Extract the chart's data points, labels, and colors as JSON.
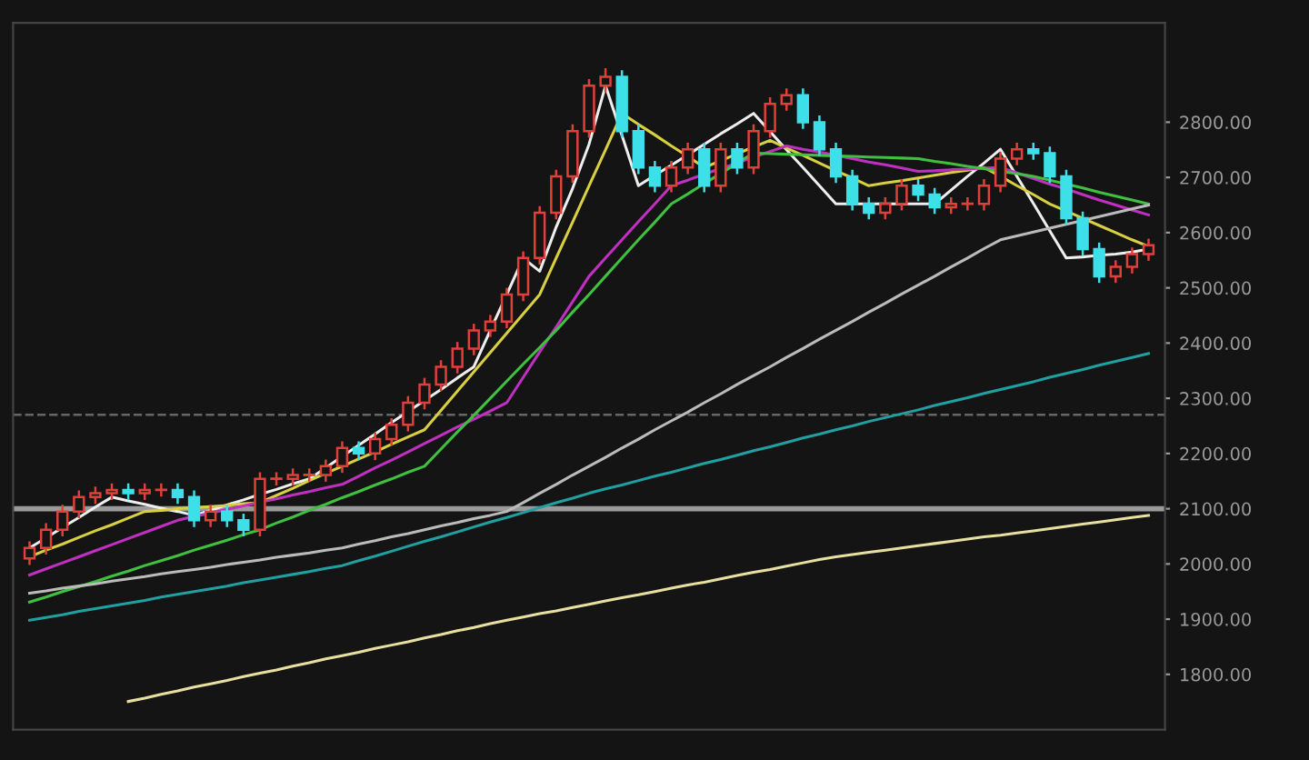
{
  "chart_data": {
    "type": "candlestick",
    "categories": [
      null,
      null,
      null,
      null,
      null,
      null,
      null,
      null,
      null,
      null,
      null,
      null,
      null,
      null,
      null,
      null,
      null,
      null,
      null,
      null,
      null,
      null,
      null,
      null,
      null,
      null,
      null,
      null,
      null,
      null,
      null,
      null,
      null,
      null,
      null,
      null,
      null,
      null,
      null,
      null,
      null,
      null,
      null,
      null,
      null,
      null,
      null,
      null,
      null,
      null,
      null,
      null,
      null,
      null,
      null,
      null,
      null,
      null,
      null,
      null,
      null,
      null,
      null,
      null,
      null,
      null,
      null,
      null,
      null
    ],
    "ohlc": [
      [
        2010,
        2041,
        1998,
        2029
      ],
      [
        2029,
        2074,
        2017,
        2062
      ],
      [
        2062,
        2107,
        2050,
        2095
      ],
      [
        2095,
        2133,
        2083,
        2121
      ],
      [
        2121,
        2140,
        2109,
        2128
      ],
      [
        2128,
        2146,
        2116,
        2134
      ],
      [
        2134,
        2146,
        2116,
        2128
      ],
      [
        2128,
        2146,
        2116,
        2134
      ],
      [
        2134,
        2146,
        2122,
        2134
      ],
      [
        2134,
        2146,
        2109,
        2121
      ],
      [
        2121,
        2133,
        2067,
        2079
      ],
      [
        2079,
        2107,
        2067,
        2095
      ],
      [
        2095,
        2107,
        2067,
        2079
      ],
      [
        2079,
        2091,
        2050,
        2062
      ],
      [
        2062,
        2166,
        2050,
        2154
      ],
      [
        2154,
        2166,
        2142,
        2154
      ],
      [
        2154,
        2173,
        2142,
        2161
      ],
      [
        2161,
        2173,
        2149,
        2161
      ],
      [
        2161,
        2189,
        2149,
        2177
      ],
      [
        2177,
        2222,
        2165,
        2210
      ],
      [
        2210,
        2222,
        2188,
        2200
      ],
      [
        2200,
        2238,
        2188,
        2226
      ],
      [
        2226,
        2264,
        2214,
        2252
      ],
      [
        2252,
        2304,
        2240,
        2292
      ],
      [
        2292,
        2337,
        2280,
        2325
      ],
      [
        2325,
        2369,
        2313,
        2357
      ],
      [
        2357,
        2402,
        2345,
        2390
      ],
      [
        2390,
        2435,
        2378,
        2423
      ],
      [
        2423,
        2451,
        2411,
        2439
      ],
      [
        2439,
        2500,
        2427,
        2488
      ],
      [
        2488,
        2566,
        2476,
        2554
      ],
      [
        2554,
        2648,
        2542,
        2636
      ],
      [
        2636,
        2714,
        2624,
        2702
      ],
      [
        2702,
        2796,
        2690,
        2784
      ],
      [
        2784,
        2878,
        2772,
        2866
      ],
      [
        2866,
        2898,
        2854,
        2882
      ],
      [
        2882,
        2894,
        2772,
        2784
      ],
      [
        2784,
        2796,
        2706,
        2718
      ],
      [
        2718,
        2730,
        2673,
        2685
      ],
      [
        2685,
        2730,
        2673,
        2718
      ],
      [
        2718,
        2763,
        2706,
        2751
      ],
      [
        2751,
        2763,
        2673,
        2685
      ],
      [
        2685,
        2763,
        2673,
        2751
      ],
      [
        2751,
        2763,
        2706,
        2718
      ],
      [
        2718,
        2796,
        2706,
        2784
      ],
      [
        2784,
        2845,
        2772,
        2833
      ],
      [
        2833,
        2861,
        2821,
        2849
      ],
      [
        2849,
        2861,
        2788,
        2800
      ],
      [
        2800,
        2812,
        2739,
        2751
      ],
      [
        2751,
        2763,
        2690,
        2702
      ],
      [
        2702,
        2714,
        2640,
        2652
      ],
      [
        2652,
        2664,
        2624,
        2636
      ],
      [
        2636,
        2664,
        2624,
        2652
      ],
      [
        2652,
        2697,
        2640,
        2685
      ],
      [
        2685,
        2697,
        2657,
        2669
      ],
      [
        2669,
        2681,
        2634,
        2646
      ],
      [
        2646,
        2664,
        2634,
        2652
      ],
      [
        2652,
        2664,
        2640,
        2652
      ],
      [
        2652,
        2697,
        2640,
        2685
      ],
      [
        2685,
        2746,
        2673,
        2734
      ],
      [
        2734,
        2763,
        2722,
        2751
      ],
      [
        2751,
        2763,
        2732,
        2744
      ],
      [
        2744,
        2756,
        2690,
        2702
      ],
      [
        2702,
        2714,
        2614,
        2626
      ],
      [
        2626,
        2638,
        2558,
        2570
      ],
      [
        2570,
        2582,
        2509,
        2521
      ],
      [
        2521,
        2550,
        2509,
        2538
      ],
      [
        2538,
        2573,
        2526,
        2561
      ],
      [
        2561,
        2589,
        2549,
        2577
      ]
    ],
    "series": [
      {
        "type": "line",
        "color": "#eeeeee",
        "values": [
          2029,
          2047,
          2066,
          2084,
          2103,
          2121,
          2114,
          2108,
          2101,
          2095,
          2088,
          2097,
          2107,
          2116,
          2126,
          2135,
          2145,
          2154,
          2174,
          2195,
          2215,
          2235,
          2256,
          2276,
          2296,
          2316,
          2337,
          2357,
          2423,
          2488,
          2554,
          2530,
          2610,
          2680,
          2760,
          2866,
          2776,
          2685,
          2704,
          2722,
          2741,
          2760,
          2779,
          2797,
          2816,
          2783,
          2750,
          2718,
          2685,
          2652,
          2652,
          2652,
          2652,
          2652,
          2652,
          2652,
          2677,
          2702,
          2726,
          2751,
          2702,
          2653,
          2603,
          2554,
          2556,
          2559,
          2561,
          2565,
          2570
        ]
      },
      {
        "type": "line",
        "color": "#d8d040",
        "values": [
          2013,
          2025,
          2036,
          2048,
          2060,
          2071,
          2083,
          2095,
          2097,
          2100,
          2102,
          2104,
          2106,
          2109,
          2111,
          2124,
          2137,
          2151,
          2164,
          2177,
          2190,
          2203,
          2217,
          2230,
          2243,
          2278,
          2313,
          2348,
          2383,
          2418,
          2453,
          2488,
          2554,
          2619,
          2685,
          2750,
          2816,
          2796,
          2777,
          2757,
          2738,
          2718,
          2730,
          2743,
          2755,
          2767,
          2753,
          2740,
          2726,
          2712,
          2699,
          2685,
          2690,
          2694,
          2699,
          2704,
          2709,
          2713,
          2718,
          2702,
          2685,
          2669,
          2652,
          2639,
          2626,
          2613,
          2600,
          2587,
          2575
        ]
      },
      {
        "type": "line",
        "color": "#c030c0",
        "values": [
          1980,
          1991,
          2002,
          2013,
          2024,
          2035,
          2046,
          2057,
          2068,
          2079,
          2086,
          2092,
          2099,
          2105,
          2112,
          2118,
          2125,
          2131,
          2138,
          2144,
          2159,
          2174,
          2188,
          2203,
          2218,
          2233,
          2248,
          2262,
          2277,
          2292,
          2338,
          2384,
          2429,
          2475,
          2521,
          2554,
          2587,
          2620,
          2652,
          2685,
          2695,
          2706,
          2716,
          2726,
          2737,
          2747,
          2757,
          2751,
          2746,
          2740,
          2734,
          2728,
          2723,
          2717,
          2711,
          2712,
          2714,
          2715,
          2717,
          2718,
          2708,
          2698,
          2688,
          2679,
          2669,
          2659,
          2650,
          2641,
          2632
        ]
      },
      {
        "type": "line",
        "color": "#40c040",
        "values": [
          1931,
          1940,
          1950,
          1959,
          1968,
          1978,
          1987,
          1997,
          2006,
          2015,
          2025,
          2034,
          2043,
          2053,
          2062,
          2074,
          2085,
          2097,
          2108,
          2120,
          2131,
          2143,
          2154,
          2166,
          2177,
          2208,
          2239,
          2269,
          2300,
          2331,
          2362,
          2392,
          2423,
          2456,
          2488,
          2521,
          2554,
          2587,
          2619,
          2652,
          2670,
          2689,
          2707,
          2726,
          2744,
          2743,
          2742,
          2741,
          2740,
          2739,
          2738,
          2737,
          2736,
          2735,
          2734,
          2729,
          2725,
          2720,
          2716,
          2711,
          2707,
          2702,
          2695,
          2688,
          2681,
          2673,
          2666,
          2659,
          2652
        ]
      },
      {
        "type": "line",
        "color": "#bbbbbb",
        "values": [
          1947,
          1951,
          1956,
          1960,
          1964,
          1969,
          1973,
          1977,
          1982,
          1986,
          1990,
          1994,
          1999,
          2003,
          2007,
          2012,
          2016,
          2020,
          2025,
          2029,
          2036,
          2042,
          2049,
          2055,
          2062,
          2069,
          2075,
          2082,
          2088,
          2095,
          2111,
          2128,
          2144,
          2161,
          2177,
          2193,
          2210,
          2226,
          2243,
          2259,
          2275,
          2292,
          2308,
          2325,
          2341,
          2357,
          2374,
          2390,
          2407,
          2423,
          2439,
          2456,
          2472,
          2489,
          2505,
          2521,
          2538,
          2554,
          2571,
          2587,
          2594,
          2601,
          2608,
          2615,
          2622,
          2629,
          2636,
          2643,
          2650
        ]
      },
      {
        "type": "line",
        "color": "#20a0a0",
        "values": [
          1898,
          1903,
          1908,
          1914,
          1919,
          1924,
          1929,
          1934,
          1940,
          1945,
          1950,
          1955,
          1960,
          1966,
          1971,
          1976,
          1981,
          1986,
          1992,
          1997,
          2006,
          2014,
          2023,
          2032,
          2041,
          2049,
          2058,
          2067,
          2076,
          2084,
          2093,
          2102,
          2111,
          2119,
          2128,
          2136,
          2143,
          2151,
          2159,
          2166,
          2174,
          2182,
          2189,
          2197,
          2205,
          2212,
          2220,
          2228,
          2235,
          2243,
          2250,
          2258,
          2265,
          2272,
          2279,
          2287,
          2294,
          2301,
          2309,
          2316,
          2323,
          2330,
          2338,
          2345,
          2352,
          2360,
          2367,
          2374,
          2381
        ]
      },
      {
        "type": "line",
        "color": "#e8e0a0",
        "values": [
          null,
          null,
          null,
          null,
          null,
          null,
          1751,
          1757,
          1764,
          1770,
          1777,
          1783,
          1789,
          1796,
          1802,
          1808,
          1815,
          1821,
          1828,
          1834,
          1840,
          1847,
          1853,
          1859,
          1866,
          1872,
          1879,
          1885,
          1892,
          1898,
          1904,
          1910,
          1915,
          1921,
          1927,
          1933,
          1939,
          1944,
          1950,
          1956,
          1962,
          1967,
          1973,
          1979,
          1985,
          1990,
          1996,
          2002,
          2008,
          2013,
          2017,
          2021,
          2025,
          2029,
          2033,
          2037,
          2041,
          2045,
          2049,
          2052,
          2056,
          2060,
          2064,
          2068,
          2072,
          2076,
          2080,
          2084,
          2088
        ]
      }
    ],
    "ylim": [
      1700,
      2980
    ],
    "yticks": [
      {
        "value": 1800,
        "label": "1800.00"
      },
      {
        "value": 1900,
        "label": "1900.00"
      },
      {
        "value": 2000,
        "label": "2000.00"
      },
      {
        "value": 2100,
        "label": "2100.00"
      },
      {
        "value": 2200,
        "label": "2200.00"
      },
      {
        "value": 2300,
        "label": "2300.00"
      },
      {
        "value": 2400,
        "label": "2400.00"
      },
      {
        "value": 2500,
        "label": "2500.00"
      },
      {
        "value": 2600,
        "label": "2600.00"
      },
      {
        "value": 2700,
        "label": "2700.00"
      },
      {
        "value": 2800,
        "label": "2800.00"
      }
    ],
    "tick_labels": "y",
    "ref_lines": [
      {
        "axis": "y",
        "value": 2100,
        "color": "#9a9a9a",
        "line_style": "solid"
      },
      {
        "axis": "y",
        "value": 2270,
        "color": "#666666",
        "line_style": "dashed"
      }
    ],
    "grid": false,
    "legend": false
  }
}
